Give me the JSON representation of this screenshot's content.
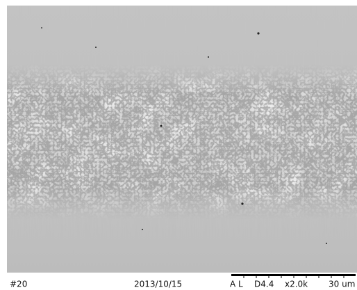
{
  "footer": {
    "sample": "#20",
    "date": "2013/10/15",
    "mode": "A L",
    "distance": "D4.4",
    "magnification": "x2.0k",
    "scale": "30 um"
  }
}
